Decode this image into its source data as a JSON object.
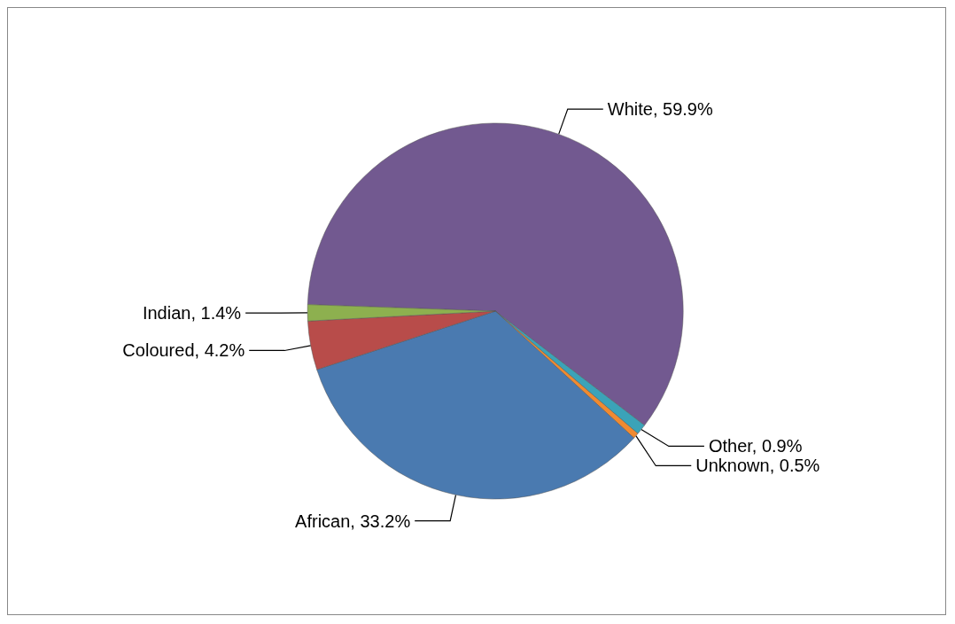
{
  "chart_data": {
    "type": "pie",
    "categories": [
      "White",
      "Other",
      "Unknown",
      "African",
      "Coloured",
      "Indian"
    ],
    "values": [
      59.9,
      0.9,
      0.5,
      33.2,
      4.2,
      1.4
    ],
    "colors": [
      "#725990",
      "#3ba3b8",
      "#f08a30",
      "#4a7ab0",
      "#b84c4a",
      "#8db04f"
    ],
    "value_labels": [
      "59.9%",
      "0.9%",
      "0.5%",
      "33.2%",
      "4.2%",
      "1.4%"
    ],
    "legend": false
  }
}
